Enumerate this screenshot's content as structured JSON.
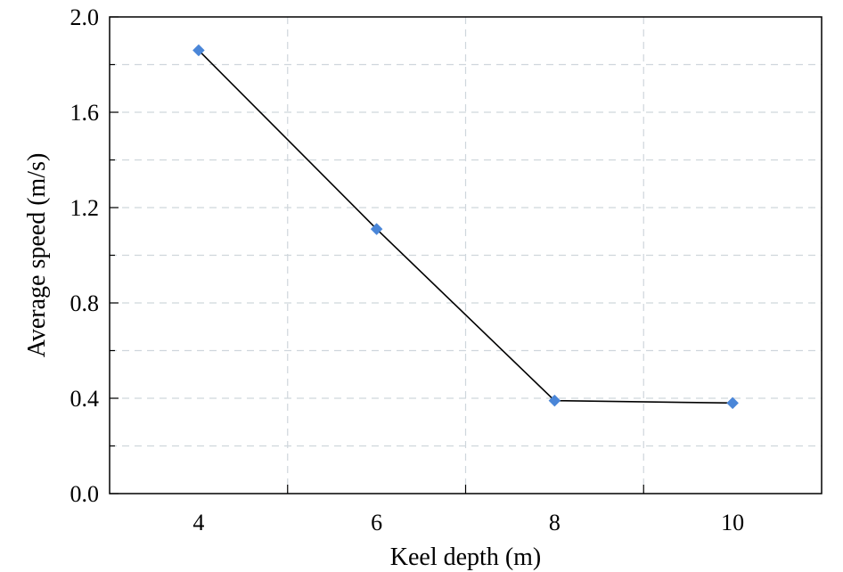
{
  "chart_data": {
    "type": "line",
    "xlabel": "Keel depth (m)",
    "ylabel": "Average speed (m/s)",
    "x": [
      4,
      6,
      8,
      10
    ],
    "series": [
      {
        "values": [
          1.86,
          1.11,
          0.39,
          0.38
        ]
      }
    ],
    "xlim": [
      3,
      11
    ],
    "ylim": [
      0,
      2.0
    ],
    "x_ticks": [
      4,
      6,
      8,
      10
    ],
    "x_tick_labels": [
      "4",
      "6",
      "8",
      "10"
    ],
    "y_ticks": [
      0,
      0.4,
      0.8,
      1.2,
      1.6,
      2.0
    ],
    "y_tick_labels": [
      "0.0",
      "0.4",
      "0.8",
      "1.2",
      "1.6",
      "2.0"
    ],
    "x_grid": [
      5,
      7,
      9
    ],
    "y_grid": [
      0.2,
      0.4,
      0.6,
      0.8,
      1.0,
      1.2,
      1.4,
      1.6,
      1.8
    ],
    "grid": true,
    "line_color": "#000000",
    "marker_color": "#4a86d8",
    "marker": "diamond"
  }
}
